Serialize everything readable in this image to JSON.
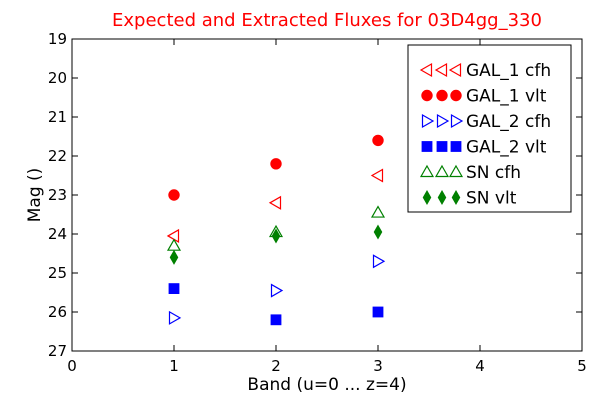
{
  "chart_data": {
    "type": "scatter",
    "title": "Expected and Extracted Fluxes for 03D4gg_330",
    "xlabel": "Band (u=0 ... z=4)",
    "ylabel": "Mag ()",
    "xlim": [
      0,
      5
    ],
    "ylim": [
      27,
      19
    ],
    "y_inverted": true,
    "grid": false,
    "legend_position": "top-right",
    "x_ticks": [
      "0",
      "1",
      "2",
      "3",
      "4",
      "5"
    ],
    "y_ticks": [
      "19",
      "20",
      "21",
      "22",
      "23",
      "24",
      "25",
      "26",
      "27"
    ],
    "series": [
      {
        "name": "GAL_1 cfh",
        "marker": "triangle-left",
        "filled": false,
        "color": "#ff0000",
        "x": [
          1,
          2,
          3
        ],
        "y": [
          24.05,
          23.2,
          22.5
        ]
      },
      {
        "name": "GAL_1 vlt",
        "marker": "circle",
        "filled": true,
        "color": "#ff0000",
        "x": [
          1,
          2,
          3
        ],
        "y": [
          23.0,
          22.2,
          21.6
        ]
      },
      {
        "name": "GAL_2 cfh",
        "marker": "triangle-right",
        "filled": false,
        "color": "#0000ff",
        "x": [
          1,
          2,
          3
        ],
        "y": [
          26.15,
          25.45,
          24.7
        ]
      },
      {
        "name": "GAL_2 vlt",
        "marker": "square",
        "filled": true,
        "color": "#0000ff",
        "x": [
          1,
          2,
          3
        ],
        "y": [
          25.4,
          26.2,
          26.0
        ]
      },
      {
        "name": "SN cfh",
        "marker": "triangle-up",
        "filled": false,
        "color": "#008000",
        "x": [
          1,
          2,
          3
        ],
        "y": [
          24.3,
          23.95,
          23.45
        ]
      },
      {
        "name": "SN vlt",
        "marker": "diamond",
        "filled": true,
        "color": "#008000",
        "x": [
          1,
          2,
          3
        ],
        "y": [
          24.6,
          24.05,
          23.95
        ]
      }
    ]
  }
}
